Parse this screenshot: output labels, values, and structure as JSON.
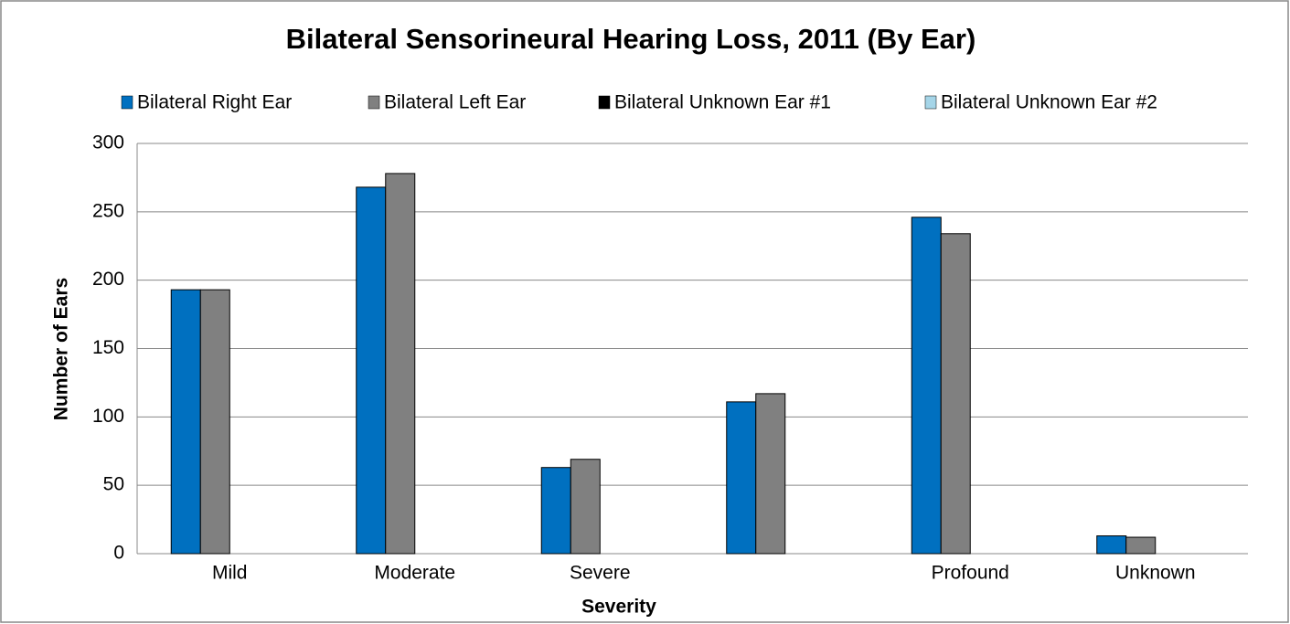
{
  "chart_data": {
    "type": "bar",
    "title": "Bilateral Sensorineural Hearing Loss, 2011 (By Ear)",
    "x_label": "Severity",
    "y_label": "Number of Ears",
    "categories": [
      "Mild",
      "Moderate",
      "Severe",
      null,
      "Profound",
      "Unknown"
    ],
    "series": [
      {
        "name": "Bilateral Right Ear",
        "color": "#0070c0",
        "values": [
          193,
          268,
          63,
          111,
          246,
          13
        ]
      },
      {
        "name": "Bilateral Left Ear",
        "color": "#808080",
        "values": [
          193,
          278,
          69,
          117,
          234,
          12
        ]
      },
      {
        "name": "Bilateral Unknown Ear #1",
        "color": "#000000",
        "values": [
          0,
          0,
          0,
          0,
          0,
          0
        ]
      },
      {
        "name": "Bilateral Unknown Ear #2",
        "color": "#a5d5e8",
        "values": [
          0,
          0,
          0,
          0,
          0,
          0
        ]
      }
    ],
    "ylim": [
      0,
      300
    ],
    "yticks": [
      0,
      50,
      100,
      150,
      200,
      250,
      300
    ],
    "grid": true,
    "legend": "top"
  }
}
